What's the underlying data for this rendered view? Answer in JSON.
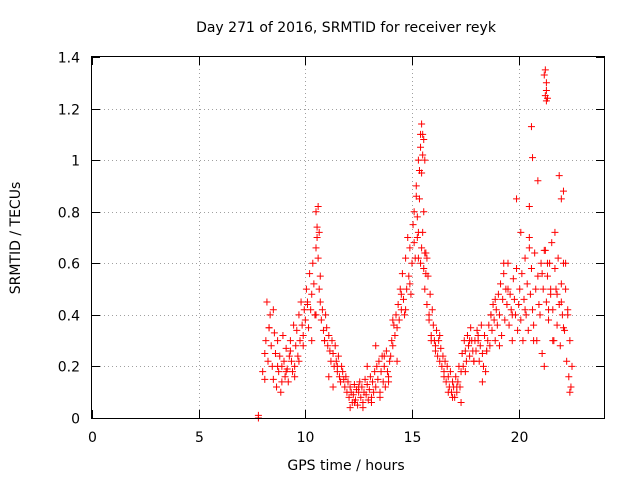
{
  "chart_data": {
    "type": "scatter",
    "title": "Day 271 of 2016, SRMTID for receiver reyk",
    "xlabel": "GPS time / hours",
    "ylabel": "SRMTID / TECUs",
    "xlim": [
      0,
      24
    ],
    "ylim": [
      0,
      1.4
    ],
    "xticks": [
      0,
      5,
      10,
      15,
      20
    ],
    "yticks": [
      0,
      0.2,
      0.4,
      0.6,
      0.8,
      1,
      1.2,
      1.4
    ],
    "xtick_labels": [
      "0",
      "5",
      "10",
      "15",
      "20"
    ],
    "ytick_labels": [
      "0",
      "0.2",
      "0.4",
      "0.6",
      "0.8",
      "1",
      "1.2",
      "1.4"
    ],
    "grid": true,
    "marker": "plus",
    "colors": {
      "points": "#ff0000",
      "grid": "#a0a0a0",
      "frame": "#000000"
    },
    "series": [
      {
        "x": [
          7.8,
          7.8,
          8.0,
          8.1,
          8.15,
          8.2,
          8.25,
          8.3,
          8.35,
          8.4,
          8.45,
          8.5,
          8.55,
          8.6,
          8.65,
          8.7,
          8.75,
          8.8,
          8.85,
          8.9,
          8.95,
          9.0,
          9.05,
          9.1,
          9.15,
          9.2,
          9.25,
          9.3,
          9.35,
          9.4,
          9.45,
          9.5,
          9.55,
          9.6,
          9.65,
          9.7,
          9.75,
          9.8,
          9.85,
          9.9,
          9.95,
          10.0,
          10.05,
          10.1,
          10.15,
          10.2,
          10.25,
          10.3,
          10.35,
          10.4,
          10.45,
          10.5,
          10.55,
          10.6,
          10.65,
          10.7,
          10.75,
          10.8,
          10.85,
          10.9,
          10.95,
          11.0,
          11.05,
          11.1,
          11.15,
          11.2,
          11.25,
          11.3,
          11.35,
          11.4,
          11.45,
          11.5,
          11.55,
          11.6,
          11.65,
          11.7,
          11.75,
          11.8,
          11.85,
          11.9,
          11.95,
          12.0,
          12.05,
          12.1,
          12.15,
          12.2,
          12.25,
          12.3,
          12.35,
          12.4,
          12.45,
          12.5,
          12.55,
          12.6,
          12.65,
          12.7,
          12.75,
          12.8,
          12.85,
          12.9,
          12.95,
          13.0,
          13.05,
          13.1,
          13.15,
          13.2,
          13.25,
          13.3,
          13.35,
          13.4,
          13.45,
          13.5,
          13.55,
          13.6,
          13.65,
          13.7,
          13.75,
          13.8,
          13.85,
          13.9,
          13.95,
          14.0,
          14.05,
          14.1,
          14.15,
          14.2,
          14.25,
          14.3,
          14.35,
          14.4,
          14.45,
          14.5,
          14.55,
          14.6,
          14.65,
          14.7,
          14.75,
          14.8,
          14.85,
          14.9,
          14.95,
          15.0,
          15.05,
          15.1,
          15.15,
          15.2,
          15.25,
          15.3,
          15.35,
          15.4,
          15.45,
          15.5,
          15.55,
          15.6,
          15.65,
          15.7,
          15.75,
          15.8,
          15.85,
          15.9,
          15.95,
          16.0,
          16.05,
          16.1,
          16.15,
          16.2,
          16.25,
          16.3,
          16.35,
          16.4,
          16.45,
          16.5,
          16.55,
          16.6,
          16.65,
          16.7,
          16.75,
          16.8,
          16.85,
          16.9,
          16.95,
          17.0,
          17.05,
          17.1,
          17.15,
          17.2,
          17.25,
          17.3,
          17.35,
          17.4,
          17.45,
          17.5,
          17.55,
          17.6,
          17.65,
          17.7,
          17.75,
          17.8,
          17.85,
          17.9,
          17.95,
          18.0,
          18.05,
          18.1,
          18.15,
          18.2,
          18.25,
          18.3,
          18.35,
          18.4,
          18.45,
          18.5,
          18.55,
          18.6,
          18.65,
          18.7,
          18.75,
          18.8,
          18.85,
          18.9,
          18.95,
          19.0,
          19.05,
          19.1,
          19.15,
          19.2,
          19.25,
          19.3,
          19.35,
          19.4,
          19.45,
          19.5,
          19.55,
          19.6,
          19.65,
          19.7,
          19.75,
          19.8,
          19.85,
          19.9,
          19.95,
          20.0,
          20.05,
          20.1,
          20.15,
          20.2,
          20.25,
          20.3,
          20.35,
          20.4,
          20.45,
          20.5,
          20.55,
          20.6,
          20.65,
          20.7,
          20.75,
          20.8,
          20.85,
          20.9,
          20.95,
          21.0,
          21.05,
          21.1,
          21.15,
          21.2,
          21.25,
          21.3,
          21.35,
          21.4,
          21.45,
          21.5,
          21.55,
          21.6,
          21.65,
          21.7,
          21.75,
          21.8,
          21.85,
          21.9,
          21.95,
          22.0,
          22.05,
          22.1,
          22.15,
          22.2,
          22.25,
          22.3,
          22.35,
          22.4,
          22.45,
          22.5,
          8.1,
          8.3,
          8.5,
          8.7,
          8.9,
          9.1,
          9.3,
          9.5,
          9.7,
          9.9,
          10.1,
          10.3,
          10.5,
          10.7,
          10.9,
          11.1,
          11.3,
          11.5,
          12.1,
          12.3,
          12.5,
          12.7,
          12.9,
          13.1,
          13.3,
          13.5,
          13.7,
          13.9,
          14.1,
          14.3,
          14.5,
          14.7,
          14.9,
          15.1,
          15.2,
          15.3,
          15.35,
          15.4,
          15.45,
          15.5,
          15.55,
          15.6,
          15.65,
          15.7,
          15.8,
          15.9,
          16.1,
          16.3,
          16.5,
          16.7,
          16.9,
          17.1,
          17.3,
          17.5,
          17.7,
          17.9,
          18.1,
          18.3,
          18.5,
          18.7,
          18.9,
          19.1,
          19.3,
          19.5,
          19.7,
          19.9,
          20.1,
          20.3,
          20.5,
          20.7,
          20.9,
          21.1,
          21.2,
          21.25,
          21.3,
          21.35,
          21.4,
          21.5,
          21.6,
          21.7,
          21.8,
          21.9,
          22.0,
          22.1,
          22.2,
          22.3,
          22.4,
          10.5,
          10.55,
          10.6,
          10.65,
          15.4,
          15.45,
          15.5,
          15.55,
          15.6,
          21.2,
          21.25,
          21.3,
          21.35,
          21.3,
          20.6,
          20.65,
          20.5,
          22.1,
          22.0,
          15.3,
          15.25
        ],
        "y": [
          0.0,
          0.01,
          0.18,
          0.25,
          0.3,
          0.45,
          0.22,
          0.35,
          0.4,
          0.28,
          0.2,
          0.15,
          0.33,
          0.25,
          0.12,
          0.2,
          0.18,
          0.24,
          0.1,
          0.2,
          0.32,
          0.22,
          0.16,
          0.27,
          0.19,
          0.14,
          0.24,
          0.3,
          0.22,
          0.18,
          0.36,
          0.2,
          0.28,
          0.34,
          0.24,
          0.4,
          0.3,
          0.45,
          0.36,
          0.32,
          0.42,
          0.38,
          0.5,
          0.44,
          0.35,
          0.56,
          0.42,
          0.48,
          0.6,
          0.52,
          0.4,
          0.66,
          0.7,
          0.62,
          0.5,
          0.45,
          0.38,
          0.42,
          0.34,
          0.3,
          0.4,
          0.35,
          0.28,
          0.32,
          0.26,
          0.22,
          0.3,
          0.25,
          0.2,
          0.28,
          0.22,
          0.18,
          0.24,
          0.16,
          0.14,
          0.2,
          0.18,
          0.15,
          0.12,
          0.16,
          0.1,
          0.14,
          0.08,
          0.12,
          0.1,
          0.06,
          0.09,
          0.13,
          0.07,
          0.11,
          0.05,
          0.1,
          0.14,
          0.08,
          0.12,
          0.06,
          0.1,
          0.15,
          0.09,
          0.13,
          0.07,
          0.11,
          0.16,
          0.08,
          0.14,
          0.1,
          0.18,
          0.12,
          0.2,
          0.15,
          0.22,
          0.1,
          0.18,
          0.24,
          0.14,
          0.2,
          0.12,
          0.26,
          0.18,
          0.16,
          0.22,
          0.24,
          0.3,
          0.28,
          0.36,
          0.32,
          0.4,
          0.35,
          0.44,
          0.38,
          0.5,
          0.42,
          0.56,
          0.46,
          0.4,
          0.62,
          0.5,
          0.7,
          0.55,
          0.66,
          0.48,
          0.6,
          0.75,
          0.8,
          0.62,
          0.9,
          0.7,
          1.0,
          0.85,
          0.6,
          0.95,
          0.72,
          0.58,
          0.5,
          0.64,
          0.44,
          0.55,
          0.38,
          0.48,
          0.32,
          0.42,
          0.36,
          0.3,
          0.28,
          0.34,
          0.24,
          0.3,
          0.22,
          0.27,
          0.2,
          0.24,
          0.18,
          0.22,
          0.14,
          0.2,
          0.16,
          0.12,
          0.18,
          0.1,
          0.14,
          0.12,
          0.08,
          0.16,
          0.1,
          0.14,
          0.2,
          0.12,
          0.18,
          0.25,
          0.2,
          0.3,
          0.26,
          0.22,
          0.32,
          0.28,
          0.24,
          0.35,
          0.3,
          0.26,
          0.22,
          0.3,
          0.26,
          0.34,
          0.3,
          0.22,
          0.28,
          0.36,
          0.25,
          0.2,
          0.32,
          0.18,
          0.26,
          0.3,
          0.36,
          0.28,
          0.4,
          0.34,
          0.44,
          0.38,
          0.3,
          0.42,
          0.36,
          0.48,
          0.4,
          0.52,
          0.32,
          0.46,
          0.56,
          0.38,
          0.5,
          0.44,
          0.6,
          0.36,
          0.48,
          0.42,
          0.3,
          0.54,
          0.46,
          0.4,
          0.58,
          0.34,
          0.44,
          0.5,
          0.38,
          0.56,
          0.3,
          0.46,
          0.62,
          0.4,
          0.52,
          0.34,
          0.7,
          0.48,
          0.58,
          0.42,
          0.36,
          0.64,
          0.5,
          0.3,
          0.55,
          0.44,
          0.4,
          0.6,
          0.25,
          0.5,
          0.2,
          0.65,
          0.45,
          0.55,
          0.38,
          0.6,
          0.48,
          0.68,
          0.42,
          0.3,
          0.58,
          0.5,
          0.36,
          0.62,
          0.44,
          0.28,
          0.52,
          0.4,
          0.6,
          0.34,
          0.5,
          0.22,
          0.42,
          0.16,
          0.3,
          0.12,
          0.2,
          0.15,
          0.35,
          0.42,
          0.3,
          0.14,
          0.18,
          0.26,
          0.16,
          0.22,
          0.28,
          0.45,
          0.3,
          0.4,
          0.55,
          0.3,
          0.16,
          0.12,
          0.2,
          0.04,
          0.06,
          0.12,
          0.04,
          0.2,
          0.06,
          0.28,
          0.08,
          0.24,
          0.14,
          0.38,
          0.22,
          0.48,
          0.42,
          0.52,
          0.68,
          0.86,
          0.72,
          0.96,
          1.05,
          0.66,
          1.1,
          0.8,
          0.64,
          0.56,
          0.62,
          0.4,
          0.3,
          0.26,
          0.32,
          0.16,
          0.1,
          0.08,
          0.12,
          0.06,
          0.18,
          0.3,
          0.22,
          0.32,
          0.14,
          0.26,
          0.4,
          0.46,
          0.28,
          0.6,
          0.5,
          0.4,
          0.85,
          0.72,
          0.42,
          0.66,
          0.3,
          0.92,
          0.56,
          0.65,
          1.25,
          1.23,
          0.6,
          0.42,
          0.5,
          0.3,
          0.72,
          0.48,
          0.94,
          0.45,
          0.35,
          0.6,
          0.4,
          0.1,
          0.8,
          0.74,
          0.82,
          0.72,
          1.1,
          1.14,
          1.02,
          1.08,
          1.0,
          1.33,
          1.35,
          1.3,
          1.24,
          1.27,
          1.13,
          1.01,
          0.82,
          0.88,
          0.85,
          0.62,
          0.78
        ]
      }
    ]
  }
}
